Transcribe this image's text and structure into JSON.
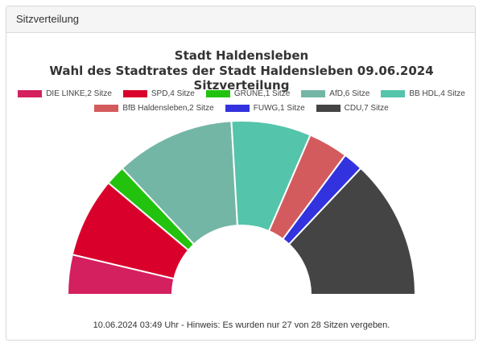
{
  "panel": {
    "title": "Sitzverteilung"
  },
  "chart_data": {
    "type": "pie",
    "subtype": "semicircle-parliament",
    "title": "Stadt Haldensleben",
    "subtitle": "Wahl des Stadtrates der Stadt Haldensleben 09.06.2024 Sitzverteilung",
    "unit": "Sitze",
    "categories": [
      "DIE LINKE",
      "SPD",
      "GRÜNE",
      "AfD",
      "BB HDL",
      "BfB Haldensleben",
      "FUWG",
      "CDU"
    ],
    "values": [
      2,
      4,
      1,
      6,
      4,
      2,
      1,
      7
    ],
    "colors": [
      "#d4205e",
      "#d9002b",
      "#22c20e",
      "#74b6a6",
      "#54c4ab",
      "#d45b5d",
      "#3232de",
      "#444444"
    ],
    "legend_labels": [
      "DIE LINKE,2 Sitze",
      "SPD,4 Sitze",
      "GRÜNE,1 Sitze",
      "AfD,6 Sitze",
      "BB HDL,4 Sitze",
      "BfB Haldensleben,2 Sitze",
      "FUWG,1 Sitze",
      "CDU,7 Sitze"
    ],
    "legend_rows": [
      [
        0,
        1,
        2,
        3,
        4
      ],
      [
        5,
        6,
        7
      ]
    ],
    "legend_placement": "top",
    "total_seats": 28,
    "assigned_seats": 27
  },
  "footer": {
    "note": "10.06.2024 03:49 Uhr - Hinweis: Es wurden nur 27 von 28 Sitzen vergeben."
  }
}
